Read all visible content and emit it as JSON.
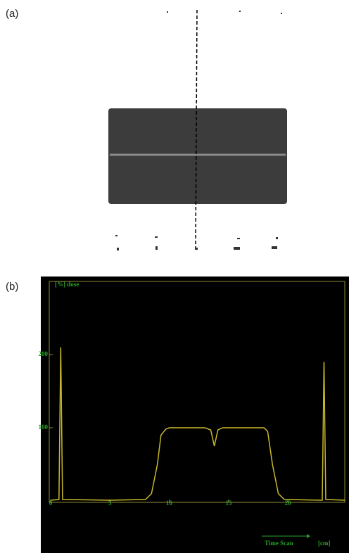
{
  "panel_a": {
    "label": "(a)"
  },
  "chart_data": {
    "type": "line",
    "label": "(b)",
    "ylabel": "[%] dose",
    "xlabel": "Time Scan",
    "xunit": "[cm]",
    "x": [
      0,
      0.7,
      0.85,
      1.0,
      5,
      8,
      8.5,
      9,
      9.3,
      9.7,
      10,
      13,
      13.5,
      13.8,
      14.1,
      14.5,
      18,
      18.3,
      18.7,
      19.2,
      19.7,
      22.9,
      23.05,
      23.2,
      24.8
    ],
    "values": [
      1,
      2,
      210,
      2,
      1,
      2,
      10,
      50,
      90,
      98,
      100,
      100,
      97,
      75,
      97,
      100,
      100,
      95,
      50,
      10,
      2,
      1,
      190,
      2,
      1
    ],
    "color": "#c9b92a",
    "xlim": [
      0,
      24.8
    ],
    "ylim": [
      0,
      300
    ],
    "xticks": [
      0,
      5,
      10,
      15,
      20
    ],
    "yticks": [
      100,
      200
    ]
  }
}
